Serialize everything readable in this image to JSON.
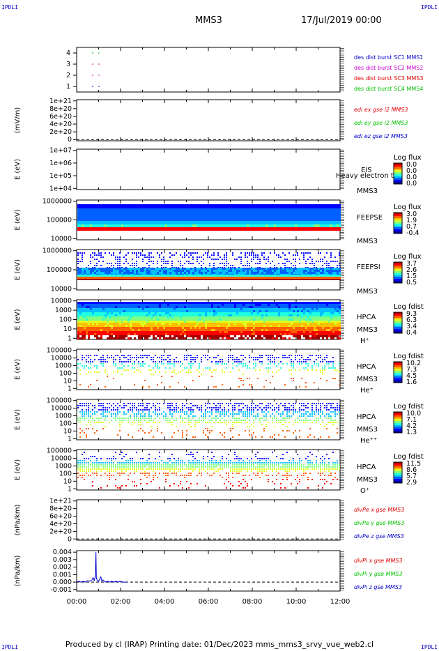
{
  "corner_label": "IPDLI",
  "header": {
    "mission": "MMS3",
    "date": "17/Jul/2019 00:00"
  },
  "footer": {
    "text": "Produced by cl (IRAP)    Printing date: 01/Dec/2023    mms_mms3_srvy_vue_web2.cl"
  },
  "colors": {
    "red": "#e00000",
    "green": "#00c000",
    "blue": "#0000cc",
    "magenta": "#cc00cc"
  },
  "chart_data": [
    {
      "type": "scatter",
      "yticks": [
        "1",
        "2",
        "3",
        "4"
      ],
      "ylim": [
        0.5,
        4.5
      ],
      "series": [
        {
          "name": "des dist burst SC1 MMS1",
          "color": "#0000cc",
          "points": [
            [
              0.7,
              1
            ],
            [
              0.98,
              1
            ]
          ]
        },
        {
          "name": "des dist burst SC2 MMS2",
          "color": "#cc00cc",
          "points": [
            [
              0.7,
              2
            ],
            [
              0.98,
              2
            ]
          ]
        },
        {
          "name": "des dist burst SC3 MMS3",
          "color": "#e00000",
          "points": [
            [
              0.7,
              3
            ],
            [
              0.98,
              3
            ]
          ]
        },
        {
          "name": "des dist burst SC4 MMS4",
          "color": "#00c000",
          "points": [
            [
              0.7,
              4
            ],
            [
              0.98,
              4
            ]
          ]
        }
      ]
    },
    {
      "type": "line",
      "ylabel": "(mV/m)",
      "yticks": [
        "0",
        "2e+20",
        "4e+20",
        "6e+20",
        "8e+20",
        "1e+21"
      ],
      "series": [
        {
          "name": "edi ex gse l2 MMS3",
          "color": "#e00000"
        },
        {
          "name": "edi ey gse l2 MMS3",
          "color": "#00c000"
        },
        {
          "name": "edi ez gse l2 MMS3",
          "color": "#0000cc"
        }
      ]
    },
    {
      "type": "heatmap",
      "ylabel": "E (eV)",
      "yticks": [
        "1e+04",
        "1e+05",
        "1e+06",
        "1e+07"
      ],
      "instrument": "EIS",
      "spacecraft": "MMS3",
      "note": "Heavy electron to",
      "colorbar": {
        "label": "Log flux",
        "ticks": [
          "0.0",
          "0.0",
          "0.0",
          "0.0"
        ]
      }
    },
    {
      "type": "heatmap",
      "ylabel": "E (eV)",
      "yticks": [
        "10000",
        "100000",
        "1000000"
      ],
      "instrument": "FEEPSE",
      "spacecraft": "MMS3",
      "colorbar": {
        "label": "Log flux",
        "ticks": [
          "3.0",
          "1.9",
          "0.7",
          "-0.4"
        ]
      }
    },
    {
      "type": "heatmap",
      "ylabel": "E (eV)",
      "yticks": [
        "10000",
        "100000",
        "1000000"
      ],
      "instrument": "FEEPSI",
      "spacecraft": "MMS3",
      "colorbar": {
        "label": "Log flux",
        "ticks": [
          "3.7",
          "2.6",
          "1.5",
          "0.5"
        ]
      }
    },
    {
      "type": "heatmap",
      "ylabel": "E (eV)",
      "yticks": [
        "1",
        "10",
        "100",
        "1000",
        "10000"
      ],
      "instrument": "HPCA",
      "spacecraft": "MMS3",
      "species": "H⁺",
      "colorbar": {
        "label": "Log fdist",
        "ticks": [
          "9.3",
          "6.3",
          "3.4",
          "0.4"
        ]
      }
    },
    {
      "type": "heatmap",
      "ylabel": "E (eV)",
      "yticks": [
        "1",
        "10",
        "100",
        "1000",
        "10000",
        "100000"
      ],
      "instrument": "HPCA",
      "spacecraft": "MMS3",
      "species": "He⁺",
      "colorbar": {
        "label": "Log fdist",
        "ticks": [
          "10.2",
          "7.3",
          "4.5",
          "1.6"
        ]
      }
    },
    {
      "type": "heatmap",
      "ylabel": "E (eV)",
      "yticks": [
        "1",
        "10",
        "100",
        "1000",
        "10000",
        "100000"
      ],
      "instrument": "HPCA",
      "spacecraft": "MMS3",
      "species": "He⁺⁺",
      "colorbar": {
        "label": "Log fdist",
        "ticks": [
          "10.0",
          "7.1",
          "4.2",
          "1.3"
        ]
      }
    },
    {
      "type": "heatmap",
      "ylabel": "E (eV)",
      "yticks": [
        "1",
        "10",
        "100",
        "1000",
        "10000",
        "100000"
      ],
      "instrument": "HPCA",
      "spacecraft": "MMS3",
      "species": "O⁺",
      "colorbar": {
        "label": "Log fdist",
        "ticks": [
          "11.5",
          "8.6",
          "5.7",
          "2.9"
        ]
      }
    },
    {
      "type": "line",
      "ylabel": "(nPa/km)",
      "yticks": [
        "0",
        "2e+20",
        "4e+20",
        "6e+20",
        "8e+20",
        "1e+21"
      ],
      "series": [
        {
          "name": "divPe x gse MMS3",
          "color": "#e00000"
        },
        {
          "name": "divPe y gse MMS3",
          "color": "#00c000"
        },
        {
          "name": "divPe z gse MMS3",
          "color": "#0000cc"
        }
      ]
    },
    {
      "type": "line",
      "ylabel": "(nPa/km)",
      "yticks": [
        "-0.001",
        "0.000",
        "0.001",
        "0.002",
        "0.003",
        "0.004"
      ],
      "ylim": [
        -0.0012,
        0.0042
      ],
      "series": [
        {
          "name": "divPi x gse MMS3",
          "color": "#e00000"
        },
        {
          "name": "divPi y gse MMS3",
          "color": "#00c000"
        },
        {
          "name": "divPi z gse MMS3",
          "color": "#0000cc",
          "points": [
            [
              0.0,
              0.0
            ],
            [
              0.1,
              0.0001
            ],
            [
              0.2,
              0.0
            ],
            [
              0.3,
              0.0001
            ],
            [
              0.4,
              0.0
            ],
            [
              0.5,
              0.0002
            ],
            [
              0.6,
              0.0001
            ],
            [
              0.7,
              0.0003
            ],
            [
              0.75,
              0.0006
            ],
            [
              0.8,
              0.0002
            ],
            [
              0.85,
              0.0008
            ],
            [
              0.88,
              0.004
            ],
            [
              0.9,
              0.0005
            ],
            [
              0.95,
              0.0002
            ],
            [
              1.0,
              0.0001
            ],
            [
              1.1,
              0.0007
            ],
            [
              1.15,
              0.0001
            ],
            [
              1.2,
              0.0003
            ],
            [
              1.3,
              0.0
            ],
            [
              1.4,
              0.0001
            ],
            [
              1.5,
              0.0
            ],
            [
              1.6,
              0.0001
            ],
            [
              1.7,
              0.0
            ],
            [
              1.8,
              0.0001
            ],
            [
              1.9,
              0.0
            ],
            [
              2.0,
              0.0001
            ],
            [
              2.1,
              0.0
            ],
            [
              2.2,
              0.0
            ],
            [
              2.3,
              0.0
            ]
          ]
        }
      ]
    }
  ],
  "xaxis": {
    "ticks": [
      "00:00",
      "02:00",
      "04:00",
      "06:00",
      "08:00",
      "10:00",
      "12:00"
    ],
    "range_hours": [
      0,
      12
    ]
  }
}
